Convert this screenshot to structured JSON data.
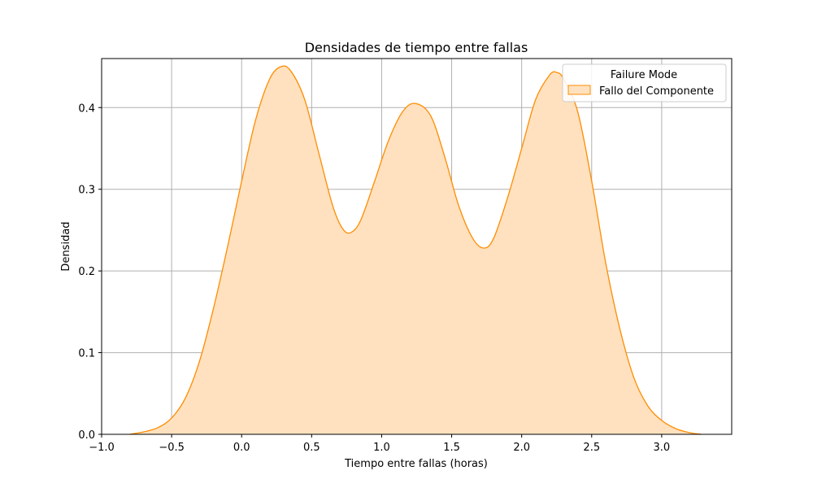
{
  "chart_data": {
    "type": "area",
    "title": "Densidades de tiempo entre fallas",
    "xlabel": "Tiempo entre fallas (horas)",
    "ylabel": "Densidad",
    "xlim": [
      -1.0,
      3.5
    ],
    "ylim": [
      0.0,
      0.46
    ],
    "xticks": [
      -1.0,
      -0.5,
      0.0,
      0.5,
      1.0,
      1.5,
      2.0,
      2.5,
      3.0
    ],
    "xtick_labels": [
      "−1.0",
      "−0.5",
      "0.0",
      "0.5",
      "1.0",
      "1.5",
      "2.0",
      "2.5",
      "3.0"
    ],
    "yticks": [
      0.0,
      0.1,
      0.2,
      0.3,
      0.4
    ],
    "ytick_labels": [
      "0.0",
      "0.1",
      "0.2",
      "0.3",
      "0.4"
    ],
    "grid": true,
    "legend": {
      "title": "Failure Mode",
      "placement": "top-right",
      "entries": [
        "Fallo del Componente"
      ]
    },
    "series": [
      {
        "name": "Fallo del Componente",
        "color": "#ff8c00",
        "fill_color": "#ffe1bf",
        "x": [
          -0.8,
          -0.7,
          -0.6,
          -0.5,
          -0.4,
          -0.3,
          -0.2,
          -0.1,
          0.0,
          0.1,
          0.2,
          0.28,
          0.35,
          0.45,
          0.55,
          0.65,
          0.72,
          0.78,
          0.85,
          0.95,
          1.05,
          1.15,
          1.24,
          1.35,
          1.45,
          1.55,
          1.65,
          1.73,
          1.8,
          1.9,
          2.0,
          2.1,
          2.2,
          2.25,
          2.3,
          2.4,
          2.5,
          2.6,
          2.7,
          2.8,
          2.9,
          3.0,
          3.1,
          3.2,
          3.28
        ],
        "y": [
          0.0,
          0.003,
          0.008,
          0.02,
          0.045,
          0.09,
          0.155,
          0.23,
          0.31,
          0.385,
          0.435,
          0.45,
          0.445,
          0.41,
          0.345,
          0.28,
          0.252,
          0.247,
          0.262,
          0.31,
          0.36,
          0.395,
          0.405,
          0.39,
          0.34,
          0.28,
          0.24,
          0.228,
          0.24,
          0.29,
          0.35,
          0.41,
          0.44,
          0.443,
          0.435,
          0.395,
          0.31,
          0.21,
          0.13,
          0.07,
          0.035,
          0.017,
          0.007,
          0.002,
          0.0
        ]
      }
    ]
  }
}
